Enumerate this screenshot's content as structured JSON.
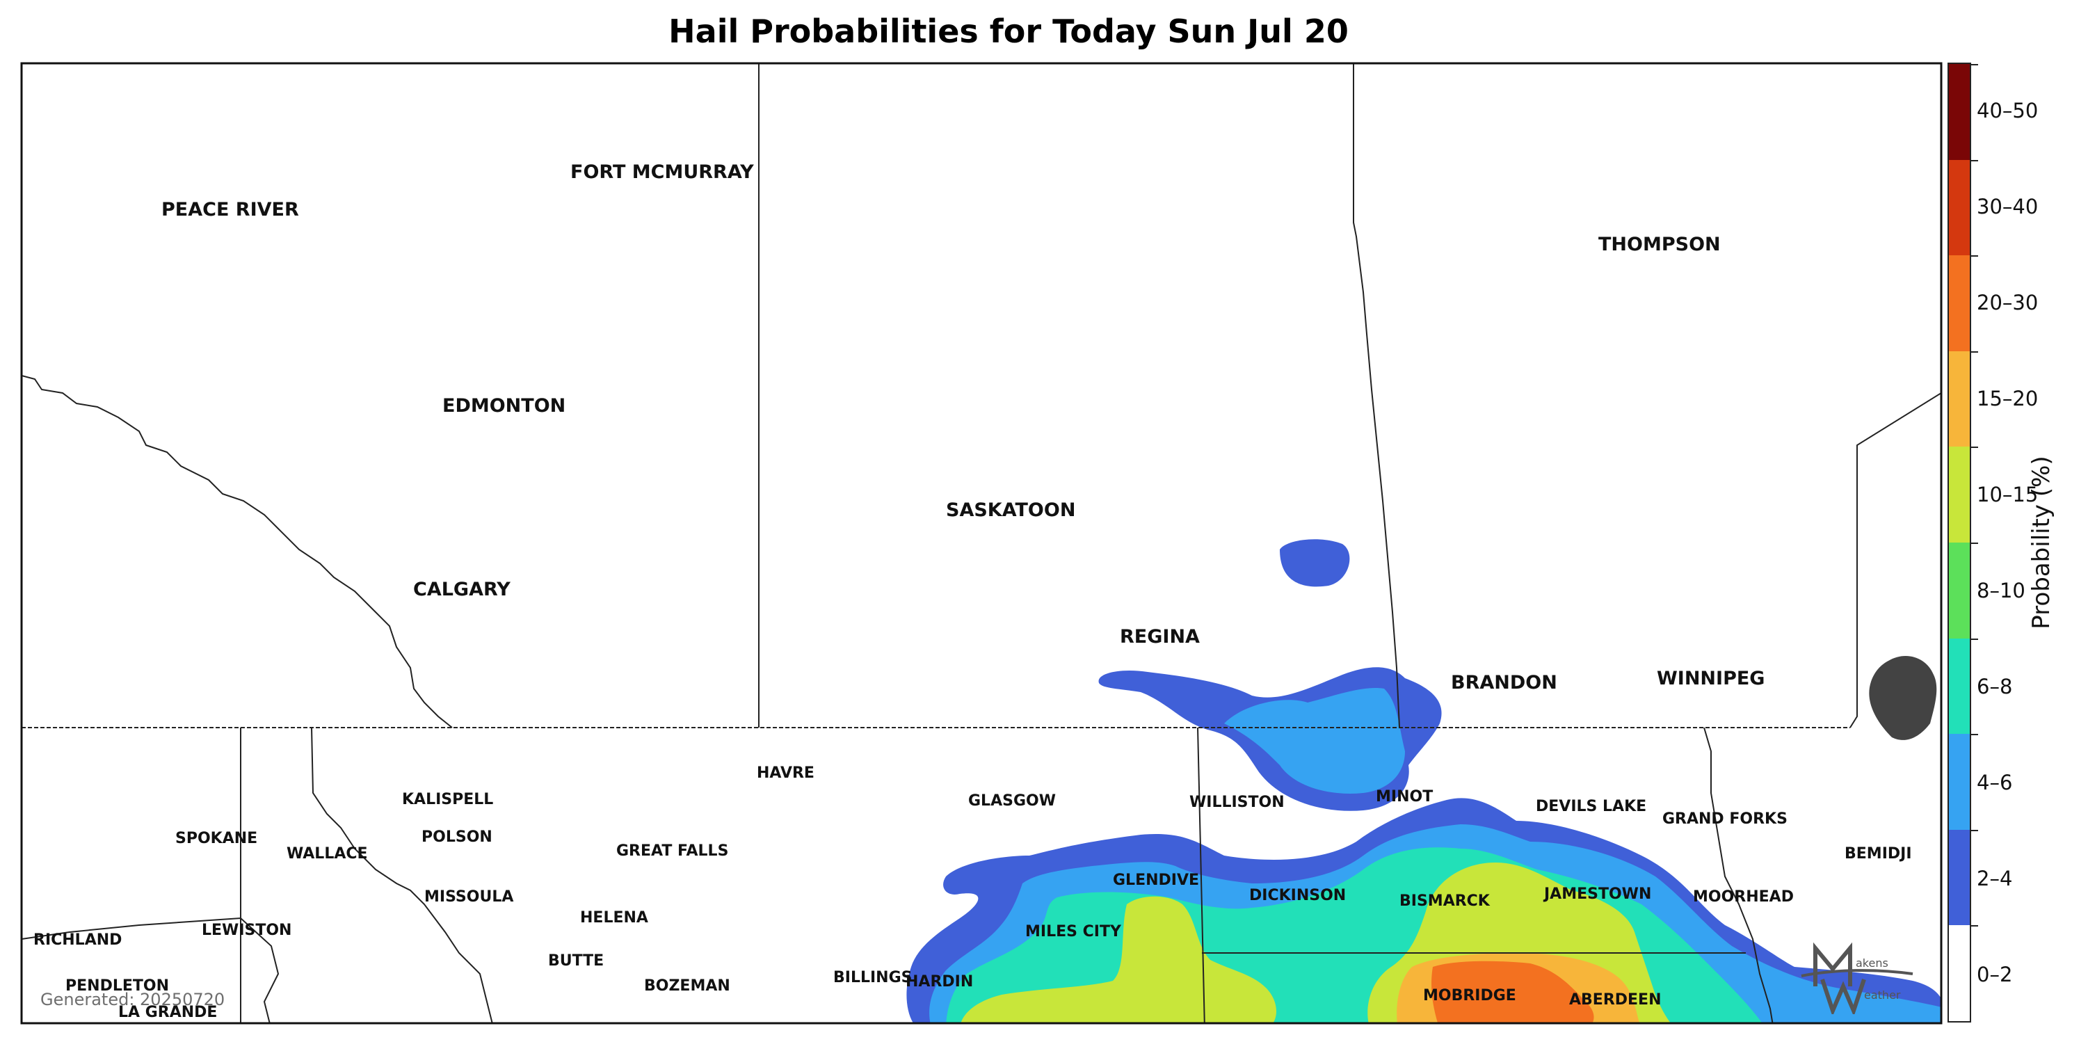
{
  "title": "Hail Probabilities for Today Sun Jul 20",
  "generated_text": "Generated: 20250720",
  "colorbar": {
    "axis_label": "Probability (%)",
    "bins": [
      {
        "label": "0–2",
        "color": "#ffffff"
      },
      {
        "label": "2–4",
        "color": "#4060d8"
      },
      {
        "label": "4–6",
        "color": "#36a3f2"
      },
      {
        "label": "6–8",
        "color": "#22e0b8"
      },
      {
        "label": "8–10",
        "color": "#5ce05a"
      },
      {
        "label": "10–15",
        "color": "#c8e63a"
      },
      {
        "label": "15–20",
        "color": "#f7b53a"
      },
      {
        "label": "20–30",
        "color": "#f37120"
      },
      {
        "label": "30–40",
        "color": "#d4380f"
      },
      {
        "label": "40–50",
        "color": "#7a0606"
      }
    ]
  },
  "cities": {
    "peace_river": "PEACE RIVER",
    "fort_mcmurray": "FORT MCMURRAY",
    "edmonton": "EDMONTON",
    "calgary": "CALGARY",
    "saskatoon": "SASKATOON",
    "regina": "REGINA",
    "thompson": "THOMPSON",
    "brandon": "BRANDON",
    "winnipeg": "WINNIPEG",
    "havre": "HAVRE",
    "kalispell": "KALISPELL",
    "glasgow": "GLASGOW",
    "williston": "WILLISTON",
    "minot": "MINOT",
    "devils_lake": "DEVILS LAKE",
    "grand_forks": "GRAND FORKS",
    "bemidji": "BEMIDJI",
    "spokane": "SPOKANE",
    "polson": "POLSON",
    "wallace": "WALLACE",
    "great_falls": "GREAT FALLS",
    "glendive": "GLENDIVE",
    "dickinson": "DICKINSON",
    "bismarck": "BISMARCK",
    "jamestown": "JAMESTOWN",
    "moorhead": "MOORHEAD",
    "missoula": "MISSOULA",
    "helena": "HELENA",
    "miles_city": "MILES CITY",
    "lewiston": "LEWISTON",
    "richland": "RICHLAND",
    "butte": "BUTTE",
    "bozeman": "BOZEMAN",
    "billings": "BILLINGS",
    "hardin": "HARDIN",
    "mobridge": "MOBRIDGE",
    "aberdeen": "ABERDEEN",
    "pendleton": "PENDLETON",
    "la_grande": "LA GRANDE"
  },
  "logo": {
    "text_top": "akens",
    "text_bottom": "eather"
  }
}
